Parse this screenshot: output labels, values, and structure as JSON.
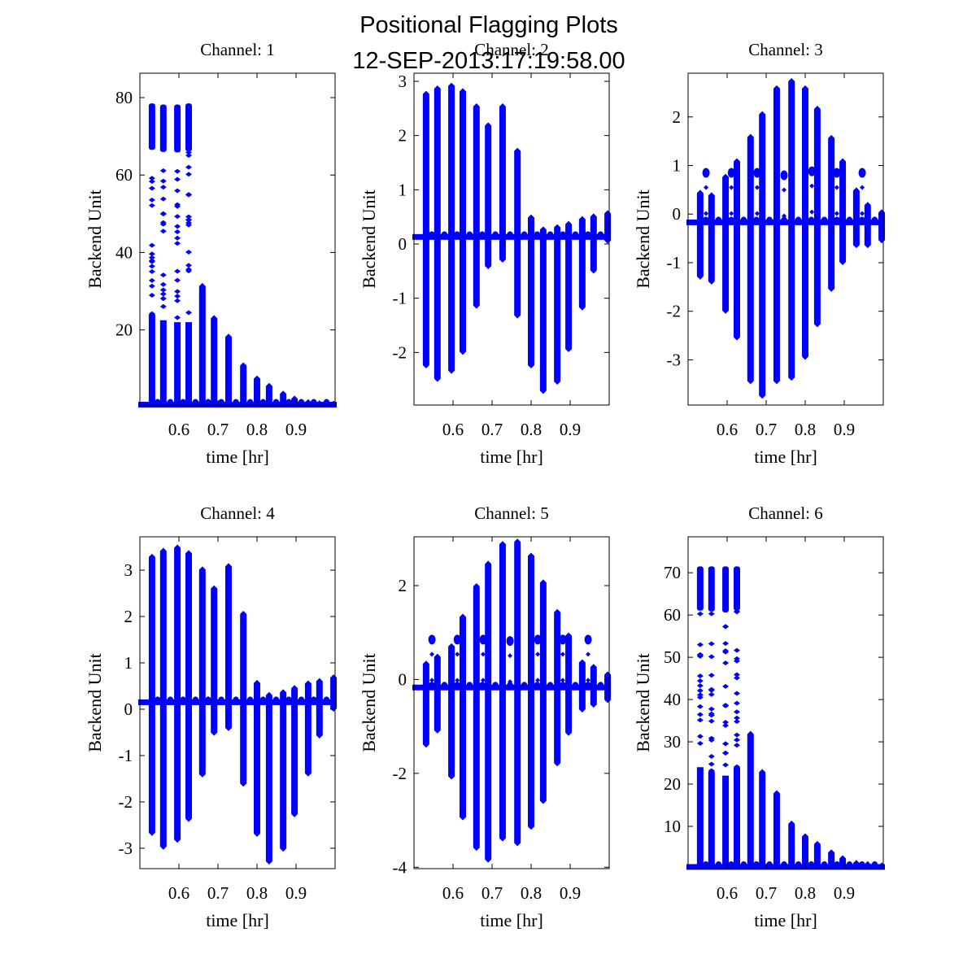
{
  "figure": {
    "title_line1": "Positional Flagging Plots",
    "title_line2": "12-SEP-2013:17:19:58.00"
  },
  "colors": {
    "marker": "#0000ff",
    "axes": "#000000",
    "background": "#ffffff"
  },
  "chart_data": [
    {
      "type": "scatter",
      "title": "Channel: 1",
      "xlabel": "time [hr]",
      "ylabel": "Backend Unit",
      "xlim": [
        0.5,
        1.0
      ],
      "ylim": [
        0.6,
        86.3
      ],
      "xticks": [
        0.6,
        0.7,
        0.8,
        0.9
      ],
      "xtick_labels": [
        "0.6",
        "0.7",
        "0.8",
        "0.9"
      ],
      "yticks": [
        20,
        40,
        60,
        80
      ],
      "ytick_labels": [
        "20",
        "40",
        "60",
        "80"
      ],
      "baseline": 0.7,
      "spikes": [
        {
          "x": 0.531,
          "max": 78.5,
          "min": 0.7,
          "solid": 24
        },
        {
          "x": 0.56,
          "max": 78.2,
          "min": 0.7,
          "solid": 22.5
        },
        {
          "x": 0.596,
          "max": 78.2,
          "min": 0.7,
          "solid": 22
        },
        {
          "x": 0.625,
          "max": 78.5,
          "min": 0.7,
          "solid": 22
        },
        {
          "x": 0.66,
          "max": 31.5,
          "min": 0.7,
          "solid": 31.5
        },
        {
          "x": 0.69,
          "max": 23.2,
          "min": 0.7,
          "solid": 23.2
        },
        {
          "x": 0.727,
          "max": 18.4,
          "min": 0.7,
          "solid": 18.4
        },
        {
          "x": 0.765,
          "max": 11.0,
          "min": 0.7,
          "solid": 11.0
        },
        {
          "x": 0.8,
          "max": 7.6,
          "min": 0.7,
          "solid": 7.6
        },
        {
          "x": 0.831,
          "max": 5.7,
          "min": 0.7,
          "solid": 5.7
        },
        {
          "x": 0.867,
          "max": 3.7,
          "min": 0.7,
          "solid": 3.7
        },
        {
          "x": 0.896,
          "max": 2.4,
          "min": 0.7,
          "solid": 2.4
        },
        {
          "x": 0.931,
          "max": 1.5,
          "min": 0.7,
          "solid": 1.5
        },
        {
          "x": 0.96,
          "max": 1.2,
          "min": 0.7,
          "solid": 1.2
        },
        {
          "x": 0.996,
          "max": 1.1,
          "min": 0.7,
          "solid": 1.1
        }
      ],
      "satellites": []
    },
    {
      "type": "scatter",
      "title": "Channel: 2",
      "xlabel": "time [hr]",
      "ylabel": "Backend Unit",
      "xlim": [
        0.5,
        1.0
      ],
      "ylim": [
        -2.97,
        3.15
      ],
      "xticks": [
        0.6,
        0.7,
        0.8,
        0.9
      ],
      "xtick_labels": [
        "0.6",
        "0.7",
        "0.8",
        "0.9"
      ],
      "yticks": [
        -2,
        -1,
        0,
        1,
        2,
        3
      ],
      "ytick_labels": [
        "-2",
        "-1",
        "0",
        "1",
        "2",
        "3"
      ],
      "baseline": 0.13,
      "spikes": [
        {
          "x": 0.531,
          "max": 2.78,
          "min": -2.25
        },
        {
          "x": 0.56,
          "max": 2.88,
          "min": -2.5
        },
        {
          "x": 0.596,
          "max": 2.93,
          "min": -2.35
        },
        {
          "x": 0.625,
          "max": 2.83,
          "min": -2.0
        },
        {
          "x": 0.66,
          "max": 2.55,
          "min": -1.15
        },
        {
          "x": 0.69,
          "max": 2.2,
          "min": -0.42
        },
        {
          "x": 0.727,
          "max": 2.55,
          "min": -0.3
        },
        {
          "x": 0.765,
          "max": 1.73,
          "min": -1.33
        },
        {
          "x": 0.8,
          "max": 0.5,
          "min": -2.25
        },
        {
          "x": 0.831,
          "max": 0.28,
          "min": -2.72
        },
        {
          "x": 0.867,
          "max": 0.32,
          "min": -2.55
        },
        {
          "x": 0.896,
          "max": 0.38,
          "min": -1.95
        },
        {
          "x": 0.931,
          "max": 0.47,
          "min": -1.18
        },
        {
          "x": 0.96,
          "max": 0.52,
          "min": -0.5
        },
        {
          "x": 0.996,
          "max": 0.58,
          "min": 0.05
        }
      ],
      "satellites": []
    },
    {
      "type": "scatter",
      "title": "Channel: 3",
      "xlabel": "time [hr]",
      "ylabel": "Backend Unit",
      "xlim": [
        0.5,
        1.0
      ],
      "ylim": [
        -3.93,
        2.9
      ],
      "xticks": [
        0.6,
        0.7,
        0.8,
        0.9
      ],
      "xtick_labels": [
        "0.6",
        "0.7",
        "0.8",
        "0.9"
      ],
      "yticks": [
        -3,
        -2,
        -1,
        0,
        1,
        2
      ],
      "ytick_labels": [
        "-3",
        "-2",
        "-1",
        "0",
        "1",
        "2"
      ],
      "baseline": -0.17,
      "spikes": [
        {
          "x": 0.531,
          "max": 0.45,
          "min": -1.3
        },
        {
          "x": 0.56,
          "max": 0.4,
          "min": -1.4
        },
        {
          "x": 0.596,
          "max": 0.78,
          "min": -2.0
        },
        {
          "x": 0.625,
          "max": 1.1,
          "min": -2.55
        },
        {
          "x": 0.66,
          "max": 1.6,
          "min": -3.45
        },
        {
          "x": 0.69,
          "max": 2.07,
          "min": -3.75
        },
        {
          "x": 0.727,
          "max": 2.6,
          "min": -3.45
        },
        {
          "x": 0.765,
          "max": 2.75,
          "min": -3.38
        },
        {
          "x": 0.8,
          "max": 2.6,
          "min": -2.95
        },
        {
          "x": 0.831,
          "max": 2.18,
          "min": -2.28
        },
        {
          "x": 0.867,
          "max": 1.58,
          "min": -1.55
        },
        {
          "x": 0.896,
          "max": 1.1,
          "min": -1.0
        },
        {
          "x": 0.931,
          "max": 0.5,
          "min": -0.65
        },
        {
          "x": 0.96,
          "max": 0.2,
          "min": -0.65
        },
        {
          "x": 0.996,
          "max": 0.05,
          "min": -0.55
        }
      ],
      "satellites": [
        {
          "x": 0.546,
          "y": 0.85
        },
        {
          "x": 0.611,
          "y": 0.85
        },
        {
          "x": 0.677,
          "y": 0.85
        },
        {
          "x": 0.746,
          "y": 0.8
        },
        {
          "x": 0.817,
          "y": 0.88
        },
        {
          "x": 0.881,
          "y": 0.85
        },
        {
          "x": 0.946,
          "y": 0.85
        }
      ]
    },
    {
      "type": "scatter",
      "title": "Channel: 4",
      "xlabel": "time [hr]",
      "ylabel": "Backend Unit",
      "xlim": [
        0.5,
        1.0
      ],
      "ylim": [
        -3.44,
        3.72
      ],
      "xticks": [
        0.6,
        0.7,
        0.8,
        0.9
      ],
      "xtick_labels": [
        "0.6",
        "0.7",
        "0.8",
        "0.9"
      ],
      "yticks": [
        -3,
        -2,
        -1,
        0,
        1,
        2,
        3
      ],
      "ytick_labels": [
        "-3",
        "-2",
        "-1",
        "0",
        "1",
        "2",
        "3"
      ],
      "baseline": 0.15,
      "spikes": [
        {
          "x": 0.531,
          "max": 3.3,
          "min": -2.68
        },
        {
          "x": 0.56,
          "max": 3.43,
          "min": -2.98
        },
        {
          "x": 0.596,
          "max": 3.5,
          "min": -2.83
        },
        {
          "x": 0.625,
          "max": 3.38,
          "min": -2.38
        },
        {
          "x": 0.66,
          "max": 3.03,
          "min": -1.42
        },
        {
          "x": 0.69,
          "max": 2.62,
          "min": -0.52
        },
        {
          "x": 0.727,
          "max": 3.1,
          "min": -0.42
        },
        {
          "x": 0.765,
          "max": 2.07,
          "min": -1.62
        },
        {
          "x": 0.8,
          "max": 0.58,
          "min": -2.7
        },
        {
          "x": 0.831,
          "max": 0.32,
          "min": -3.3
        },
        {
          "x": 0.867,
          "max": 0.38,
          "min": -3.02
        },
        {
          "x": 0.896,
          "max": 0.47,
          "min": -2.28
        },
        {
          "x": 0.931,
          "max": 0.57,
          "min": -1.4
        },
        {
          "x": 0.96,
          "max": 0.62,
          "min": -0.58
        },
        {
          "x": 0.996,
          "max": 0.7,
          "min": 0.0
        }
      ],
      "satellites": []
    },
    {
      "type": "scatter",
      "title": "Channel: 5",
      "xlabel": "time [hr]",
      "ylabel": "Backend Unit",
      "xlim": [
        0.5,
        1.0
      ],
      "ylim": [
        -4.03,
        3.04
      ],
      "xticks": [
        0.6,
        0.7,
        0.8,
        0.9
      ],
      "xtick_labels": [
        "0.6",
        "0.7",
        "0.8",
        "0.9"
      ],
      "yticks": [
        -4,
        -2,
        0,
        2
      ],
      "ytick_labels": [
        "-4",
        "-2",
        "0",
        "2"
      ],
      "baseline": -0.17,
      "spikes": [
        {
          "x": 0.531,
          "max": 0.35,
          "min": -1.4
        },
        {
          "x": 0.56,
          "max": 0.5,
          "min": -1.1
        },
        {
          "x": 0.596,
          "max": 0.72,
          "min": -2.08
        },
        {
          "x": 0.625,
          "max": 1.35,
          "min": -2.95
        },
        {
          "x": 0.66,
          "max": 2.0,
          "min": -3.6
        },
        {
          "x": 0.69,
          "max": 2.48,
          "min": -3.85
        },
        {
          "x": 0.727,
          "max": 2.9,
          "min": -3.4
        },
        {
          "x": 0.765,
          "max": 2.95,
          "min": -3.5
        },
        {
          "x": 0.8,
          "max": 2.65,
          "min": -3.15
        },
        {
          "x": 0.831,
          "max": 2.08,
          "min": -2.6
        },
        {
          "x": 0.867,
          "max": 1.45,
          "min": -1.8
        },
        {
          "x": 0.896,
          "max": 0.95,
          "min": -1.15
        },
        {
          "x": 0.931,
          "max": 0.38,
          "min": -0.65
        },
        {
          "x": 0.96,
          "max": 0.28,
          "min": -0.55
        },
        {
          "x": 0.996,
          "max": 0.12,
          "min": -0.45
        }
      ],
      "satellites": [
        {
          "x": 0.546,
          "y": 0.85
        },
        {
          "x": 0.611,
          "y": 0.85
        },
        {
          "x": 0.677,
          "y": 0.85
        },
        {
          "x": 0.746,
          "y": 0.82
        },
        {
          "x": 0.817,
          "y": 0.85
        },
        {
          "x": 0.881,
          "y": 0.85
        },
        {
          "x": 0.946,
          "y": 0.85
        }
      ]
    },
    {
      "type": "scatter",
      "title": "Channel: 6",
      "xlabel": "time [hr]",
      "ylabel": "Backend Unit",
      "xlim": [
        0.5,
        1.0
      ],
      "ylim": [
        0.0,
        78.5
      ],
      "xticks": [
        0.6,
        0.7,
        0.8,
        0.9
      ],
      "xtick_labels": [
        "0.6",
        "0.7",
        "0.8",
        "0.9"
      ],
      "yticks": [
        10,
        20,
        30,
        40,
        50,
        60,
        70
      ],
      "ytick_labels": [
        "10",
        "20",
        "30",
        "40",
        "50",
        "60",
        "70"
      ],
      "baseline": 0.4,
      "spikes": [
        {
          "x": 0.531,
          "max": 71.5,
          "min": 0.4,
          "solid": 24
        },
        {
          "x": 0.56,
          "max": 71.5,
          "min": 0.4,
          "solid": 23
        },
        {
          "x": 0.596,
          "max": 71.5,
          "min": 0.4,
          "solid": 22
        },
        {
          "x": 0.625,
          "max": 71.5,
          "min": 0.4,
          "solid": 24
        },
        {
          "x": 0.66,
          "max": 32.0,
          "min": 0.4,
          "solid": 32.0
        },
        {
          "x": 0.69,
          "max": 23.0,
          "min": 0.4,
          "solid": 23.0
        },
        {
          "x": 0.727,
          "max": 18.0,
          "min": 0.4,
          "solid": 18.0
        },
        {
          "x": 0.765,
          "max": 10.8,
          "min": 0.4,
          "solid": 10.8
        },
        {
          "x": 0.8,
          "max": 7.8,
          "min": 0.4,
          "solid": 7.8
        },
        {
          "x": 0.831,
          "max": 6.0,
          "min": 0.4,
          "solid": 6.0
        },
        {
          "x": 0.867,
          "max": 4.0,
          "min": 0.4,
          "solid": 4.0
        },
        {
          "x": 0.896,
          "max": 2.6,
          "min": 0.4,
          "solid": 2.6
        },
        {
          "x": 0.931,
          "max": 1.5,
          "min": 0.4,
          "solid": 1.5
        },
        {
          "x": 0.96,
          "max": 1.2,
          "min": 0.4,
          "solid": 1.2
        },
        {
          "x": 0.996,
          "max": 0.9,
          "min": 0.4,
          "solid": 0.9
        }
      ],
      "satellites": []
    }
  ]
}
